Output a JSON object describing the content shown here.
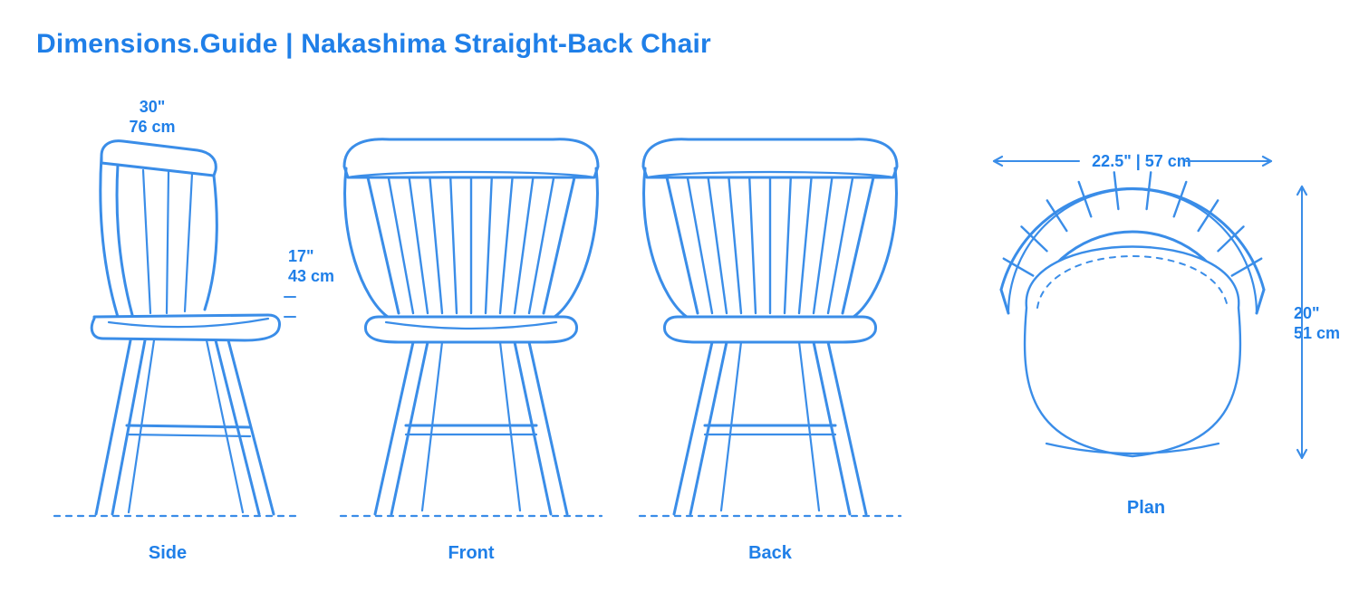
{
  "title": "Dimensions.Guide | Nakashima Straight-Back Chair",
  "stroke_color": "#3a8de8",
  "stroke_width": 3,
  "dash_pattern": "6,7",
  "background_color": "#ffffff",
  "font_color": "#1f7fe8",
  "title_fontsize": 30,
  "label_fontsize": 20,
  "dim_fontsize": 18,
  "dimensions": {
    "height_in": "30\"",
    "height_cm": "76 cm",
    "seat_height_in": "17\"",
    "seat_height_cm": "43 cm",
    "width_in_cm": "22.5\" | 57 cm",
    "depth_in": "20\"",
    "depth_cm": "51 cm"
  },
  "views": {
    "side": "Side",
    "front": "Front",
    "back": "Back",
    "plan": "Plan"
  }
}
